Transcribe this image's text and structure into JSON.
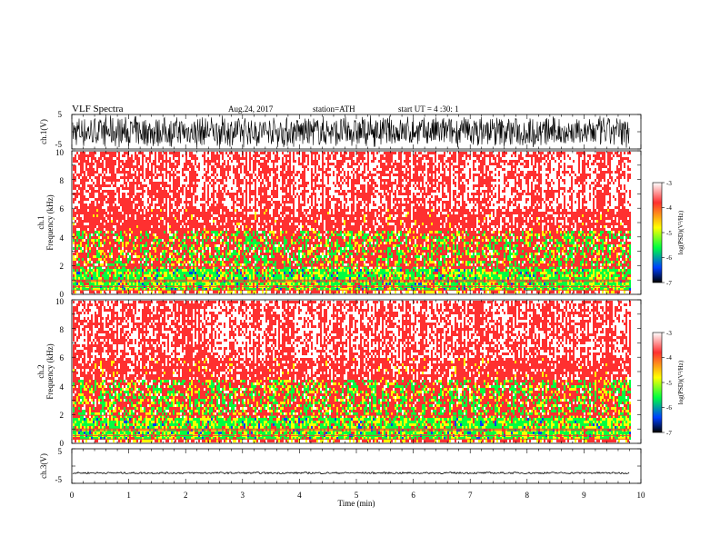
{
  "header": {
    "title": "VLF  Spectra",
    "date": "Aug.24, 2017",
    "station": "station=ATH",
    "start_ut": "start  UT  =   4  :30: 1"
  },
  "chart_data": [
    {
      "type": "line",
      "name": "ch1-waveform",
      "ylabel": "ch.1(V)",
      "ylim": [
        -5,
        5
      ],
      "yticks": [
        5,
        -5
      ],
      "xlim": [
        0,
        10
      ],
      "data_xmax": 9.8
    },
    {
      "type": "heatmap",
      "name": "ch1-spectrogram",
      "ylabel_line1": "ch.1",
      "ylabel_line2": "Frequency (kHz)",
      "ylim": [
        0,
        10
      ],
      "yticks": [
        0,
        2,
        4,
        6,
        8,
        10
      ],
      "xlim": [
        0,
        10
      ],
      "data_xmax": 9.8,
      "colorbar": {
        "label": "log(PSD)(V²/Hz)",
        "range": [
          -7,
          -3
        ],
        "ticks": [
          "-3",
          "-4",
          "-5",
          "-6",
          "-7"
        ],
        "colors": [
          "#ffffff",
          "#ff3030",
          "#ffff00",
          "#00ff40",
          "#0040ff",
          "#000000"
        ]
      }
    },
    {
      "type": "heatmap",
      "name": "ch2-spectrogram",
      "ylabel_line1": "ch.2",
      "ylabel_line2": "Frequency (kHz)",
      "ylim": [
        0,
        10
      ],
      "yticks": [
        0,
        2,
        4,
        6,
        8,
        10
      ],
      "xlim": [
        0,
        10
      ],
      "data_xmax": 9.8,
      "colorbar": {
        "label": "log(PSD)(V²/Hz)",
        "range": [
          -7,
          -3
        ],
        "ticks": [
          "-3",
          "-4",
          "-5",
          "-6",
          "-7"
        ],
        "colors": [
          "#ffffff",
          "#ff3030",
          "#ffff00",
          "#00ff40",
          "#0040ff",
          "#000000"
        ]
      }
    },
    {
      "type": "line",
      "name": "ch3-waveform",
      "ylabel": "ch.3(V)",
      "ylim": [
        -5,
        5
      ],
      "yticks": [
        5,
        -5
      ],
      "xlim": [
        0,
        10
      ],
      "data_xmax": 9.8,
      "level": -2
    }
  ],
  "xaxis": {
    "label": "Time  (min)",
    "ticks": [
      "0",
      "1",
      "2",
      "3",
      "4",
      "5",
      "6",
      "7",
      "8",
      "9",
      "10"
    ]
  }
}
